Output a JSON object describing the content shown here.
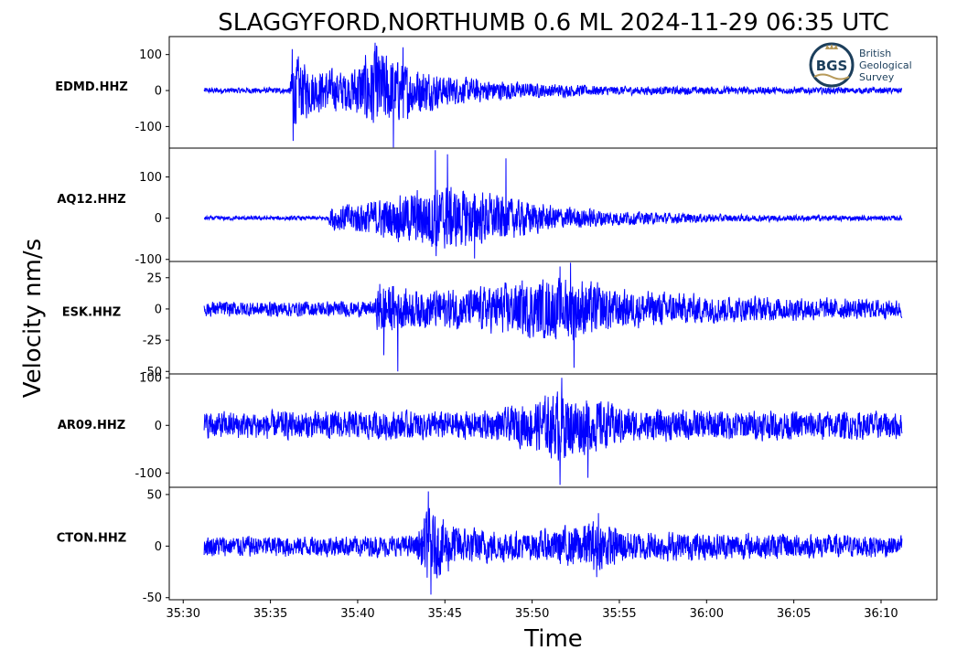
{
  "chart_data": {
    "type": "line",
    "title": "SLAGGYFORD,NORTHUMB 0.6 ML   2024-11-29 06:35 UTC",
    "xlabel": "Time",
    "ylabel": "Velocity nm/s",
    "line_color": "#0000ff",
    "x_ticks": [
      "35:30",
      "35:35",
      "35:40",
      "35:45",
      "35:50",
      "35:55",
      "36:00",
      "36:05",
      "36:10"
    ],
    "x_tick_seconds": [
      30,
      35,
      40,
      45,
      50,
      55,
      60,
      65,
      70
    ],
    "xlim_seconds": [
      29.2,
      73.2
    ],
    "trace_start_seconds": 31.2,
    "trace_end_seconds": 71.2,
    "panels": [
      {
        "station": "EDMD.HHZ",
        "ylim": [
          -160,
          150
        ],
        "yticks": [
          100,
          0,
          -100
        ],
        "ytick_labels": [
          "100",
          "0",
          "-100"
        ],
        "noise_amplitude": 8,
        "envelope": [
          {
            "t": 31.2,
            "a": 8
          },
          {
            "t": 36.1,
            "a": 8
          },
          {
            "t": 36.3,
            "a": 100
          },
          {
            "t": 37.5,
            "a": 60
          },
          {
            "t": 39.5,
            "a": 55
          },
          {
            "t": 41.0,
            "a": 120
          },
          {
            "t": 42.5,
            "a": 80
          },
          {
            "t": 45.0,
            "a": 40
          },
          {
            "t": 50.0,
            "a": 20
          },
          {
            "t": 55.0,
            "a": 12
          },
          {
            "t": 71.2,
            "a": 8
          }
        ],
        "peaks": [
          {
            "t": 36.25,
            "v": 115
          },
          {
            "t": 36.3,
            "v": -140
          },
          {
            "t": 41.0,
            "v": 133
          },
          {
            "t": 42.05,
            "v": -158
          },
          {
            "t": 42.6,
            "v": 120
          }
        ]
      },
      {
        "station": "AQ12.HHZ",
        "ylim": [
          -105,
          170
        ],
        "yticks": [
          100,
          0,
          -100
        ],
        "ytick_labels": [
          "100",
          "0",
          "-100"
        ],
        "noise_amplitude": 5,
        "envelope": [
          {
            "t": 31.2,
            "a": 5
          },
          {
            "t": 38.3,
            "a": 5
          },
          {
            "t": 38.5,
            "a": 30
          },
          {
            "t": 42.0,
            "a": 50
          },
          {
            "t": 44.5,
            "a": 80
          },
          {
            "t": 47.5,
            "a": 60
          },
          {
            "t": 51.0,
            "a": 30
          },
          {
            "t": 56.0,
            "a": 15
          },
          {
            "t": 62.0,
            "a": 8
          },
          {
            "t": 71.2,
            "a": 6
          }
        ],
        "peaks": [
          {
            "t": 44.45,
            "v": 165
          },
          {
            "t": 45.15,
            "v": 155
          },
          {
            "t": 48.5,
            "v": 145
          },
          {
            "t": 44.5,
            "v": -92
          },
          {
            "t": 46.7,
            "v": -98
          }
        ]
      },
      {
        "station": "ESK.HHZ",
        "ylim": [
          -52,
          38
        ],
        "yticks": [
          25,
          0,
          -25,
          -50
        ],
        "ytick_labels": [
          "25",
          "0",
          "-25",
          "-50"
        ],
        "noise_amplitude": 6,
        "envelope": [
          {
            "t": 31.2,
            "a": 6
          },
          {
            "t": 41.0,
            "a": 6
          },
          {
            "t": 41.2,
            "a": 22
          },
          {
            "t": 43.0,
            "a": 15
          },
          {
            "t": 46.5,
            "a": 16
          },
          {
            "t": 49.5,
            "a": 22
          },
          {
            "t": 52.5,
            "a": 25
          },
          {
            "t": 55.0,
            "a": 15
          },
          {
            "t": 62.0,
            "a": 10
          },
          {
            "t": 71.2,
            "a": 7
          }
        ],
        "peaks": [
          {
            "t": 41.5,
            "v": -37
          },
          {
            "t": 42.3,
            "v": -50
          },
          {
            "t": 51.6,
            "v": 34
          },
          {
            "t": 52.2,
            "v": 37
          },
          {
            "t": 52.4,
            "v": -47
          }
        ]
      },
      {
        "station": "AR09.HHZ",
        "ylim": [
          -130,
          108
        ],
        "yticks": [
          100,
          0,
          -100
        ],
        "ytick_labels": [
          "100",
          "0",
          "-100"
        ],
        "noise_amplitude": 28,
        "envelope": [
          {
            "t": 31.2,
            "a": 28
          },
          {
            "t": 48.0,
            "a": 30
          },
          {
            "t": 50.5,
            "a": 55
          },
          {
            "t": 51.6,
            "a": 75
          },
          {
            "t": 53.5,
            "a": 55
          },
          {
            "t": 56.0,
            "a": 32
          },
          {
            "t": 71.2,
            "a": 28
          }
        ],
        "peaks": [
          {
            "t": 51.7,
            "v": 100
          },
          {
            "t": 51.6,
            "v": -125
          },
          {
            "t": 53.2,
            "v": -110
          }
        ]
      },
      {
        "station": "CTON.HHZ",
        "ylim": [
          -52,
          57
        ],
        "yticks": [
          50,
          0,
          -50
        ],
        "ytick_labels": [
          "50",
          "0",
          "-50"
        ],
        "noise_amplitude": 10,
        "envelope": [
          {
            "t": 31.2,
            "a": 10
          },
          {
            "t": 43.3,
            "a": 10
          },
          {
            "t": 44.0,
            "a": 35
          },
          {
            "t": 46.0,
            "a": 18
          },
          {
            "t": 50.0,
            "a": 13
          },
          {
            "t": 53.5,
            "a": 24
          },
          {
            "t": 56.0,
            "a": 14
          },
          {
            "t": 71.2,
            "a": 10
          }
        ],
        "peaks": [
          {
            "t": 44.05,
            "v": 53
          },
          {
            "t": 44.2,
            "v": -47
          },
          {
            "t": 53.8,
            "v": 32
          },
          {
            "t": 53.7,
            "v": -30
          }
        ]
      }
    ]
  },
  "logo": {
    "initials": "BGS",
    "line1": "British",
    "line2": "Geological",
    "line3": "Survey",
    "ring_color": "#1c3f5c",
    "accent_color": "#b79a5a"
  }
}
